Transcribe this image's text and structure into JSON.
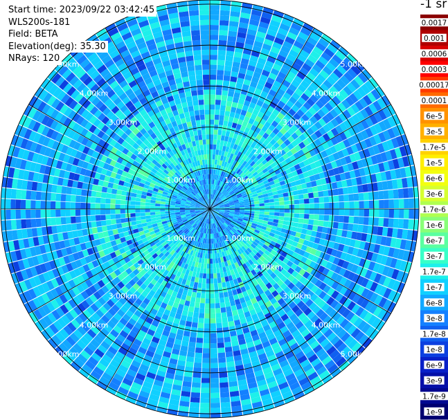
{
  "header": {
    "start_time": "Start time: 2023/09/22 03:42:45",
    "instrument": "WLS200s-181",
    "field": "Field: BETA",
    "elevation": "Elevation(deg): 35.30",
    "nrays": "NRays: 120"
  },
  "colorbar": {
    "units_label": "-1 sr",
    "ticks": [
      "0.0017",
      "0.001",
      "0.0006",
      "0.0003",
      "0.00017",
      "0.0001",
      "6e-5",
      "3e-5",
      "1.7e-5",
      "1e-5",
      "6e-6",
      "3e-6",
      "1.7e-6",
      "1e-6",
      "6e-7",
      "3e-7",
      "1.7e-7",
      "1e-7",
      "6e-8",
      "3e-8",
      "1.7e-8",
      "1e-8",
      "6e-9",
      "3e-9",
      "1.7e-9",
      "1e-9"
    ],
    "colors": [
      "#8b0000",
      "#b00000",
      "#d80000",
      "#ff0000",
      "#ff3a00",
      "#ff6a00",
      "#ff9200",
      "#ffb000",
      "#ffd200",
      "#ffee00",
      "#f2ff10",
      "#d6ff30",
      "#b0ff50",
      "#88ff78",
      "#5affa0",
      "#38ffc8",
      "#1ef0ea",
      "#10d0ff",
      "#12a8ff",
      "#1480ff",
      "#1060f0",
      "#0c40e0",
      "#0820c8",
      "#0410a8",
      "#020890",
      "#000070"
    ]
  },
  "chart_data": {
    "type": "heatmap",
    "projection": "polar (PPI scan)",
    "field": "BETA",
    "nrays": 120,
    "range_rings": [
      "1.00km",
      "2.00km",
      "3.00km",
      "4.00km",
      "5.00km"
    ],
    "ring_values_km": [
      1,
      2,
      3,
      4,
      5
    ],
    "max_range_km": 5.1,
    "ring_label_angles_deg": [
      45,
      135,
      225,
      315
    ],
    "value_range": [
      1e-09,
      0.0017
    ],
    "scale": "log",
    "dominant_values": {
      "inner_0_to_1km": "1e-8 to 3e-8",
      "middle_1_to_3km": "3e-7 to 1.7e-7",
      "outer_3_to_5km": "1e-8 to 1.7e-7"
    }
  }
}
